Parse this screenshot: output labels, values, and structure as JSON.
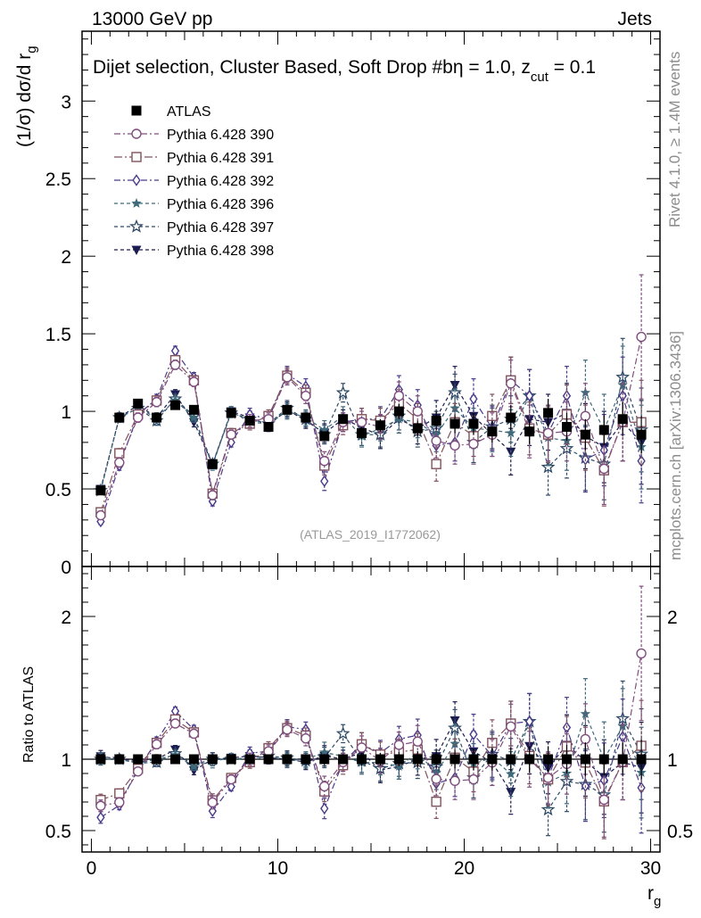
{
  "header": {
    "left": "13000 GeV pp",
    "right": "Jets"
  },
  "side_texts": {
    "rivet": "Rivet 4.1.0, ≥ 1.4M events",
    "mcplots": "mcplots.cern.ch [arXiv:1306.3436]"
  },
  "chart_data": {
    "type": "scatter",
    "title": "Dijet selection, Cluster Based, Soft Drop #b",
    "title_suffix": "η = 1.0, z",
    "title_sub": "cut",
    "title_tail": " = 0.1",
    "ylabel": "(1/σ) dσ/d r",
    "ylabel_sub": "g",
    "xlabel": "r",
    "xlabel_sub": "g",
    "ratio_ylabel": "Ratio to ATLAS",
    "watermark": "(ATLAS_2019_I1772062)",
    "xlim": [
      -0.5,
      30.5
    ],
    "ylim": [
      0,
      3.45
    ],
    "ratio_ylim": [
      0.35,
      2.35
    ],
    "x_ticks": [
      "0",
      "10",
      "20",
      "30"
    ],
    "y_ticks": [
      "0",
      "0.5",
      "1",
      "1.5",
      "2",
      "2.5",
      "3"
    ],
    "ratio_ticks": [
      "0.5",
      "1",
      "2"
    ],
    "x": [
      0.5,
      1.5,
      2.5,
      3.5,
      4.5,
      5.5,
      6.5,
      7.5,
      8.5,
      9.5,
      10.5,
      11.5,
      12.5,
      13.5,
      14.5,
      15.5,
      16.5,
      17.5,
      18.5,
      19.5,
      20.5,
      21.5,
      22.5,
      23.5,
      24.5,
      25.5,
      26.5,
      27.5,
      28.5,
      29.5
    ],
    "series": [
      {
        "name": "ATLAS",
        "legend": "ATLAS",
        "color": "#000000",
        "marker": "square-filled",
        "dash": "none",
        "values": [
          0.49,
          0.96,
          1.05,
          0.96,
          1.04,
          1.01,
          0.66,
          0.99,
          0.94,
          0.9,
          1.01,
          0.96,
          0.84,
          0.95,
          0.86,
          0.91,
          1.0,
          0.89,
          0.94,
          0.92,
          0.92,
          0.87,
          0.96,
          0.87,
          0.99,
          0.9,
          0.85,
          0.88,
          0.95,
          0.85
        ],
        "errors": [
          0.01,
          0.02,
          0.02,
          0.02,
          0.02,
          0.02,
          0.02,
          0.02,
          0.02,
          0.02,
          0.02,
          0.03,
          0.03,
          0.03,
          0.04,
          0.04,
          0.05,
          0.05,
          0.06,
          0.06,
          0.07,
          0.07,
          0.08,
          0.08,
          0.09,
          0.09,
          0.1,
          0.1,
          0.11,
          0.12
        ]
      },
      {
        "name": "Pythia 6.428 390",
        "legend": "Pythia 6.428 390",
        "color": "#7f4e7e",
        "marker": "circle-open",
        "dash": "7,3,2,3",
        "values": [
          0.33,
          0.67,
          0.96,
          1.06,
          1.3,
          1.19,
          0.46,
          0.85,
          0.94,
          0.95,
          1.22,
          1.1,
          0.68,
          0.93,
          0.93,
          0.9,
          1.1,
          1.0,
          0.81,
          0.78,
          0.79,
          0.85,
          1.18,
          0.87,
          0.86,
          0.87,
          0.97,
          0.63,
          0.93,
          1.48
        ],
        "errors": [
          0.02,
          0.03,
          0.03,
          0.03,
          0.03,
          0.03,
          0.03,
          0.03,
          0.04,
          0.04,
          0.05,
          0.05,
          0.06,
          0.06,
          0.07,
          0.08,
          0.09,
          0.1,
          0.11,
          0.12,
          0.13,
          0.14,
          0.15,
          0.17,
          0.18,
          0.19,
          0.21,
          0.23,
          0.25,
          0.4
        ]
      },
      {
        "name": "Pythia 6.428 391",
        "legend": "Pythia 6.428 391",
        "color": "#80525c",
        "marker": "square-open",
        "dash": "9,3,2,3",
        "values": [
          0.35,
          0.73,
          0.98,
          1.07,
          1.33,
          1.2,
          0.47,
          0.86,
          0.92,
          0.97,
          1.23,
          1.12,
          0.65,
          0.91,
          0.95,
          0.94,
          1.05,
          0.95,
          0.66,
          0.93,
          0.84,
          0.97,
          1.2,
          0.89,
          0.85,
          0.98,
          0.83,
          0.62,
          0.93,
          0.93
        ],
        "errors": [
          0.02,
          0.03,
          0.03,
          0.03,
          0.03,
          0.03,
          0.03,
          0.03,
          0.04,
          0.04,
          0.05,
          0.05,
          0.06,
          0.06,
          0.07,
          0.08,
          0.09,
          0.1,
          0.11,
          0.12,
          0.13,
          0.14,
          0.15,
          0.17,
          0.18,
          0.19,
          0.21,
          0.23,
          0.25,
          0.27
        ]
      },
      {
        "name": "Pythia 6.428 392",
        "legend": "Pythia 6.428 392",
        "color": "#4a3a8a",
        "marker": "diamond-open",
        "dash": "7,3,2,3",
        "values": [
          0.29,
          0.65,
          0.98,
          1.08,
          1.39,
          1.22,
          0.42,
          0.8,
          0.98,
          0.95,
          1.24,
          1.16,
          0.55,
          0.93,
          0.95,
          0.95,
          1.14,
          1.04,
          0.78,
          0.8,
          1.08,
          0.89,
          1.2,
          1.1,
          0.86,
          1.1,
          0.69,
          0.75,
          1.1,
          0.68
        ],
        "errors": [
          0.02,
          0.03,
          0.03,
          0.03,
          0.03,
          0.03,
          0.03,
          0.03,
          0.04,
          0.04,
          0.05,
          0.05,
          0.06,
          0.06,
          0.07,
          0.08,
          0.09,
          0.1,
          0.11,
          0.12,
          0.13,
          0.14,
          0.15,
          0.17,
          0.18,
          0.19,
          0.21,
          0.23,
          0.25,
          0.27
        ]
      },
      {
        "name": "Pythia 6.428 396",
        "legend": "Pythia 6.428 396",
        "color": "#3f6a7a",
        "marker": "star-filled",
        "dash": "4,3",
        "values": [
          0.49,
          0.96,
          1.02,
          0.96,
          1.07,
          0.96,
          0.65,
          1.0,
          0.93,
          0.92,
          1.0,
          0.96,
          0.88,
          0.97,
          0.84,
          0.89,
          0.95,
          0.93,
          0.85,
          1.02,
          0.89,
          0.88,
          0.86,
          1.1,
          0.83,
          0.81,
          1.12,
          0.88,
          1.17,
          0.77
        ],
        "errors": [
          0.02,
          0.03,
          0.03,
          0.03,
          0.03,
          0.03,
          0.03,
          0.03,
          0.04,
          0.04,
          0.05,
          0.05,
          0.06,
          0.06,
          0.07,
          0.08,
          0.09,
          0.1,
          0.11,
          0.12,
          0.13,
          0.14,
          0.15,
          0.17,
          0.18,
          0.19,
          0.21,
          0.23,
          0.25,
          0.27
        ]
      },
      {
        "name": "Pythia 6.428 397",
        "legend": "Pythia 6.428 397",
        "color": "#2e4a66",
        "marker": "star-open",
        "dash": "4,3",
        "values": [
          0.49,
          0.96,
          1.02,
          0.94,
          1.08,
          0.97,
          0.66,
          0.99,
          0.95,
          0.92,
          1.02,
          0.95,
          0.85,
          1.12,
          0.85,
          0.85,
          0.97,
          0.87,
          0.89,
          1.12,
          0.8,
          0.9,
          0.95,
          1.1,
          0.64,
          0.76,
          0.7,
          0.66,
          1.22,
          0.88
        ],
        "errors": [
          0.02,
          0.03,
          0.03,
          0.03,
          0.03,
          0.03,
          0.03,
          0.03,
          0.04,
          0.04,
          0.05,
          0.05,
          0.06,
          0.06,
          0.07,
          0.08,
          0.09,
          0.1,
          0.11,
          0.12,
          0.13,
          0.14,
          0.15,
          0.17,
          0.18,
          0.19,
          0.21,
          0.23,
          0.25,
          0.27
        ]
      },
      {
        "name": "Pythia 6.428 398",
        "legend": "Pythia 6.428 398",
        "color": "#1c1c50",
        "marker": "triangle-down-filled",
        "dash": "4,3",
        "values": [
          0.5,
          0.96,
          1.04,
          0.96,
          1.11,
          0.93,
          0.66,
          1.0,
          0.96,
          0.91,
          1.01,
          0.94,
          0.86,
          0.95,
          0.9,
          0.84,
          0.95,
          0.89,
          0.96,
          1.17,
          0.97,
          0.85,
          0.74,
          0.95,
          0.93,
          0.99,
          0.84,
          0.77,
          0.93,
          0.8
        ],
        "errors": [
          0.02,
          0.03,
          0.03,
          0.03,
          0.03,
          0.03,
          0.03,
          0.03,
          0.04,
          0.04,
          0.05,
          0.05,
          0.06,
          0.06,
          0.07,
          0.08,
          0.09,
          0.1,
          0.11,
          0.12,
          0.13,
          0.14,
          0.15,
          0.17,
          0.18,
          0.19,
          0.21,
          0.23,
          0.25,
          0.27
        ]
      }
    ]
  }
}
